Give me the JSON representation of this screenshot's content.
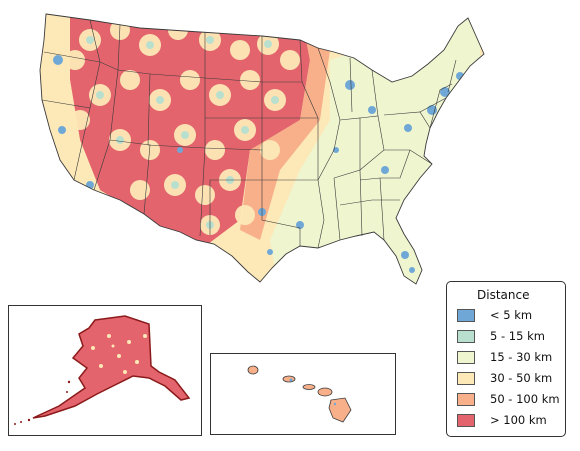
{
  "legend": {
    "title": "Distance",
    "items": [
      {
        "label": "< 5 km",
        "color": "#6fa8d6"
      },
      {
        "label": "5 - 15 km",
        "color": "#b9e0cf"
      },
      {
        "label": "15 - 30 km",
        "color": "#eef5cf"
      },
      {
        "label": "30 - 50 km",
        "color": "#fde9b8"
      },
      {
        "label": "50 - 100 km",
        "color": "#f7b08a"
      },
      {
        "label": "> 100 km",
        "color": "#e3646d"
      }
    ]
  },
  "colors": {
    "state_border": "#3a3a3a",
    "alaska_outline": "#8b1a1a",
    "alaska_fill": "#e3646d",
    "hawaii_fill": "#f7b08a"
  },
  "insets": [
    "alaska",
    "hawaii"
  ]
}
